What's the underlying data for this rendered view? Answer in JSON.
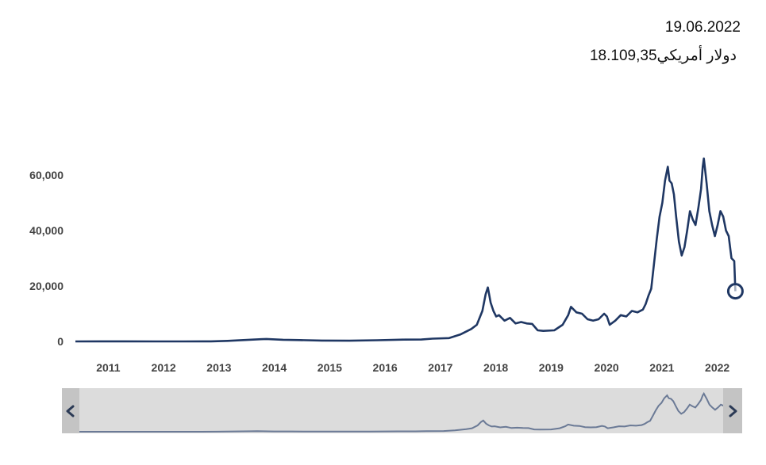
{
  "tooltip": {
    "date": "19.06.2022",
    "value": "18.109,35",
    "unit": "دولار أمريكي"
  },
  "colors": {
    "line": "#1f3763",
    "navigator_line": "#6b7a96",
    "navigator_bg": "#dcdcdc",
    "navigator_handle": "#c4c4c4",
    "axis_text": "#444444"
  },
  "chart_data": {
    "type": "line",
    "title": "",
    "xlabel": "",
    "ylabel": "",
    "xlim": [
      2010.55,
      2022.55
    ],
    "ylim": [
      0,
      70000
    ],
    "y_ticks": [
      "0",
      "20,000",
      "40,000",
      "60,000"
    ],
    "y_tick_values": [
      0,
      20000,
      40000,
      60000
    ],
    "x_ticks": [
      "2011",
      "2012",
      "2013",
      "2014",
      "2015",
      "2016",
      "2017",
      "2018",
      "2019",
      "2020",
      "2021",
      "2022"
    ],
    "x_tick_values": [
      2011,
      2012,
      2013,
      2014,
      2015,
      2016,
      2017,
      2018,
      2019,
      2020,
      2021,
      2022
    ],
    "grid": false,
    "legend": "none",
    "highlight_point": {
      "x": 2022.47,
      "y": 18109
    },
    "series": [
      {
        "x": [
          2010.55,
          2011.0,
          2011.45,
          2012.0,
          2012.5,
          2013.0,
          2013.3,
          2013.9,
          2014.0,
          2014.3,
          2014.6,
          2015.0,
          2015.5,
          2016.0,
          2016.5,
          2016.8,
          2017.0,
          2017.3,
          2017.5,
          2017.7,
          2017.8,
          2017.9,
          2017.96,
          2018.0,
          2018.05,
          2018.1,
          2018.15,
          2018.2,
          2018.3,
          2018.4,
          2018.5,
          2018.6,
          2018.7,
          2018.8,
          2018.9,
          2019.0,
          2019.2,
          2019.35,
          2019.45,
          2019.5,
          2019.6,
          2019.7,
          2019.8,
          2019.9,
          2020.0,
          2020.1,
          2020.15,
          2020.2,
          2020.3,
          2020.4,
          2020.5,
          2020.6,
          2020.7,
          2020.8,
          2020.85,
          2020.9,
          2020.95,
          2021.0,
          2021.05,
          2021.1,
          2021.15,
          2021.2,
          2021.25,
          2021.28,
          2021.32,
          2021.36,
          2021.4,
          2021.45,
          2021.5,
          2021.55,
          2021.6,
          2021.65,
          2021.7,
          2021.75,
          2021.8,
          2021.85,
          2021.88,
          2021.9,
          2021.95,
          2022.0,
          2022.05,
          2022.1,
          2022.15,
          2022.2,
          2022.25,
          2022.3,
          2022.35,
          2022.4,
          2022.45,
          2022.47
        ],
        "values": [
          0,
          20,
          30,
          10,
          10,
          15,
          200,
          800,
          900,
          600,
          500,
          300,
          250,
          420,
          650,
          700,
          1000,
          1200,
          2500,
          4500,
          6000,
          11000,
          17000,
          19500,
          14000,
          11000,
          9000,
          9500,
          7500,
          8500,
          6500,
          7000,
          6500,
          6300,
          4000,
          3800,
          4000,
          6000,
          9500,
          12500,
          10500,
          10000,
          8000,
          7500,
          8000,
          10000,
          9000,
          6000,
          7500,
          9500,
          9000,
          11000,
          10500,
          11500,
          13500,
          16500,
          19000,
          28000,
          37000,
          45000,
          50000,
          58000,
          63000,
          58000,
          57000,
          53000,
          45000,
          36000,
          31000,
          34000,
          40000,
          47000,
          44000,
          42000,
          48000,
          55000,
          63000,
          66000,
          57000,
          47000,
          42000,
          38000,
          42000,
          47000,
          45000,
          40000,
          38000,
          30000,
          29000,
          18109
        ]
      }
    ]
  }
}
